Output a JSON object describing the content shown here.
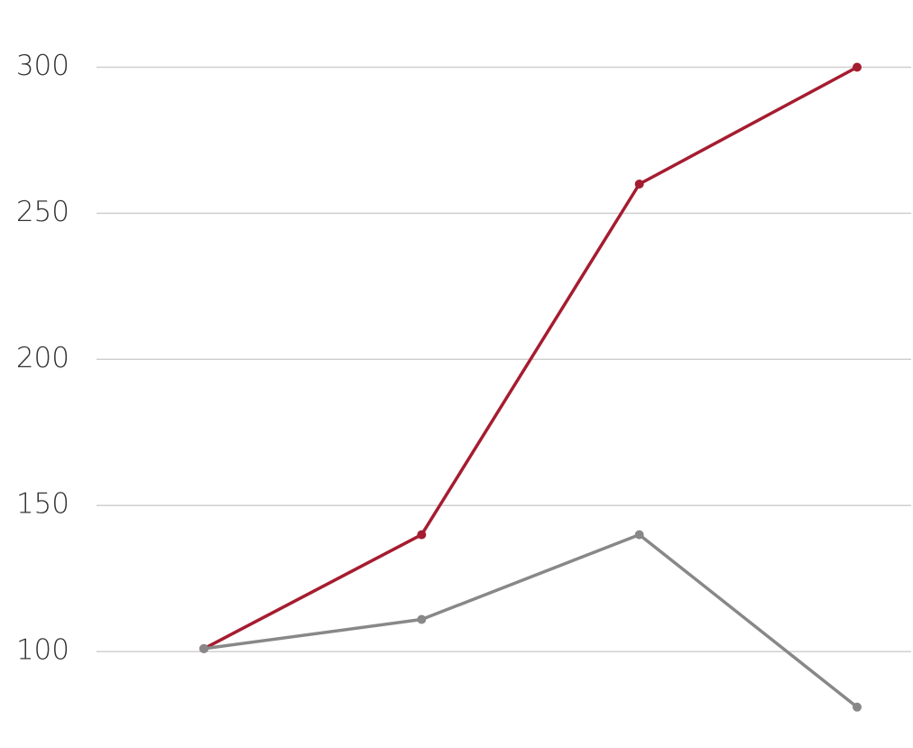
{
  "chart_data": {
    "type": "line",
    "categories": [
      null,
      null,
      null,
      null
    ],
    "series": [
      {
        "color": "#a51c30",
        "values": [
          101,
          140,
          260,
          300
        ]
      },
      {
        "color": "#888888",
        "values": [
          101,
          111,
          140,
          81
        ]
      }
    ],
    "ylim": [
      67,
      323
    ],
    "yticks": [
      100,
      150,
      200,
      250,
      300
    ],
    "grid": true
  }
}
